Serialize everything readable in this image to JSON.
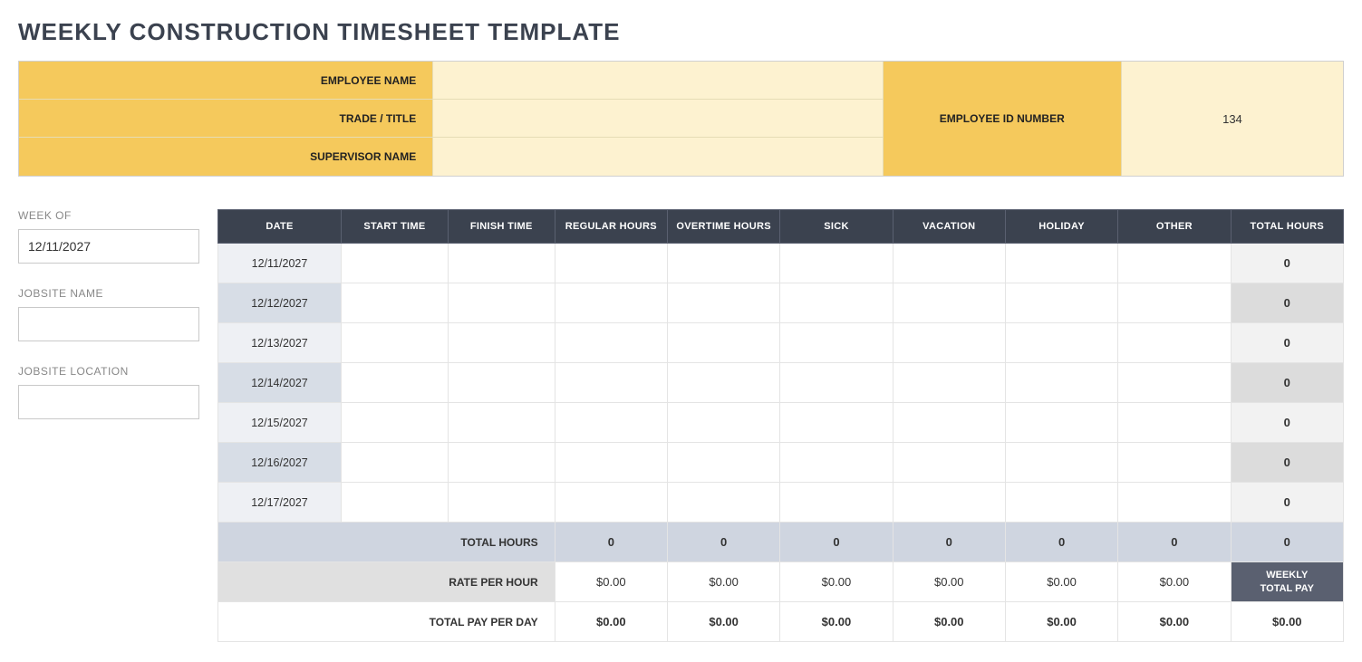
{
  "title": "WEEKLY CONSTRUCTION TIMESHEET TEMPLATE",
  "header": {
    "employee_name_label": "EMPLOYEE NAME",
    "employee_name_value": "",
    "trade_title_label": "TRADE / TITLE",
    "trade_title_value": "",
    "supervisor_name_label": "SUPERVISOR NAME",
    "supervisor_name_value": "",
    "employee_id_label": "EMPLOYEE ID NUMBER",
    "employee_id_value": "134"
  },
  "sidebar": {
    "week_of_label": "WEEK OF",
    "week_of_value": "12/11/2027",
    "jobsite_name_label": "JOBSITE NAME",
    "jobsite_name_value": "",
    "jobsite_location_label": "JOBSITE LOCATION",
    "jobsite_location_value": ""
  },
  "table": {
    "columns": [
      "DATE",
      "START TIME",
      "FINISH TIME",
      "REGULAR HOURS",
      "OVERTIME HOURS",
      "SICK",
      "VACATION",
      "HOLIDAY",
      "OTHER",
      "TOTAL HOURS"
    ],
    "rows": [
      {
        "date": "12/11/2027",
        "start": "",
        "finish": "",
        "regular": "",
        "overtime": "",
        "sick": "",
        "vacation": "",
        "holiday": "",
        "other": "",
        "total": "0"
      },
      {
        "date": "12/12/2027",
        "start": "",
        "finish": "",
        "regular": "",
        "overtime": "",
        "sick": "",
        "vacation": "",
        "holiday": "",
        "other": "",
        "total": "0"
      },
      {
        "date": "12/13/2027",
        "start": "",
        "finish": "",
        "regular": "",
        "overtime": "",
        "sick": "",
        "vacation": "",
        "holiday": "",
        "other": "",
        "total": "0"
      },
      {
        "date": "12/14/2027",
        "start": "",
        "finish": "",
        "regular": "",
        "overtime": "",
        "sick": "",
        "vacation": "",
        "holiday": "",
        "other": "",
        "total": "0"
      },
      {
        "date": "12/15/2027",
        "start": "",
        "finish": "",
        "regular": "",
        "overtime": "",
        "sick": "",
        "vacation": "",
        "holiday": "",
        "other": "",
        "total": "0"
      },
      {
        "date": "12/16/2027",
        "start": "",
        "finish": "",
        "regular": "",
        "overtime": "",
        "sick": "",
        "vacation": "",
        "holiday": "",
        "other": "",
        "total": "0"
      },
      {
        "date": "12/17/2027",
        "start": "",
        "finish": "",
        "regular": "",
        "overtime": "",
        "sick": "",
        "vacation": "",
        "holiday": "",
        "other": "",
        "total": "0"
      }
    ],
    "total_hours_label": "TOTAL HOURS",
    "total_hours": [
      "0",
      "0",
      "0",
      "0",
      "0",
      "0",
      "0"
    ],
    "rate_label": "RATE PER HOUR",
    "rates": [
      "$0.00",
      "$0.00",
      "$0.00",
      "$0.00",
      "$0.00",
      "$0.00"
    ],
    "weekly_total_pay_label": "WEEKLY\nTOTAL PAY",
    "pay_per_day_label": "TOTAL PAY PER DAY",
    "pay_per_day": [
      "$0.00",
      "$0.00",
      "$0.00",
      "$0.00",
      "$0.00",
      "$0.00",
      "$0.00"
    ]
  },
  "colors": {
    "title": "#3b424f",
    "header_label_bg": "#f5c95c",
    "header_value_bg": "#fdf2d0",
    "th_bg": "#3b424f",
    "date_cell_light": "#eef0f4",
    "date_cell_dark": "#d7dde6",
    "total_cell_light": "#f2f2f2",
    "total_cell_dark": "#dcdcdc",
    "totals_row_bg": "#cfd5e0",
    "rate_label_bg": "#e0e0e0",
    "weekly_label_bg": "#5a6070"
  }
}
